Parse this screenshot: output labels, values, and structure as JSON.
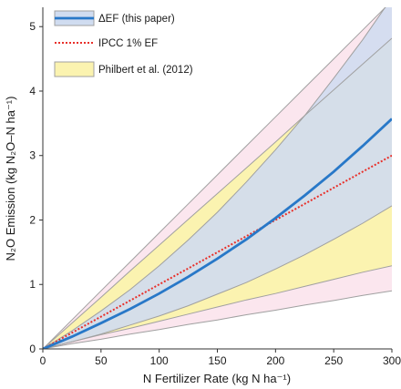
{
  "chart_data": {
    "type": "area",
    "xlabel": "N Fertilizer Rate (kg N ha⁻¹)",
    "ylabel": "N₂O Emission (kg N₂O–N ha⁻¹)",
    "xlim": [
      0,
      300
    ],
    "ylim": [
      0,
      5.3
    ],
    "x_ticks": [
      0,
      50,
      100,
      150,
      200,
      250,
      300
    ],
    "y_ticks": [
      0,
      1,
      2,
      3,
      4,
      5
    ],
    "grid": false,
    "legend_position": "top-left",
    "legend": [
      {
        "name": "ΔEF (this paper)",
        "symbol": "line-with-band",
        "color": "#2878c8",
        "band_color": "#d0dcf0"
      },
      {
        "name": "IPCC 1% EF",
        "symbol": "dotted-line",
        "color": "#e8302a"
      },
      {
        "name": "Philbert et al. (2012)",
        "symbol": "band",
        "color": "#fbf3b0"
      }
    ],
    "x": [
      0,
      25,
      50,
      75,
      100,
      125,
      150,
      175,
      200,
      225,
      250,
      275,
      300
    ],
    "series": [
      {
        "name": "ΔEF (this paper)",
        "role": "mean",
        "values": [
          0,
          0.19,
          0.4,
          0.62,
          0.86,
          1.12,
          1.4,
          1.7,
          2.03,
          2.38,
          2.75,
          3.15,
          3.57
        ],
        "color": "#2878c8"
      },
      {
        "name": "ΔEF (this paper)",
        "role": "upper",
        "values": [
          0,
          0.28,
          0.59,
          0.92,
          1.29,
          1.69,
          2.12,
          2.59,
          3.09,
          3.62,
          4.2,
          4.8,
          5.45
        ]
      },
      {
        "name": "ΔEF (this paper)",
        "role": "lower",
        "values": [
          0,
          0.11,
          0.23,
          0.37,
          0.51,
          0.67,
          0.85,
          1.03,
          1.24,
          1.46,
          1.7,
          1.95,
          2.22
        ]
      },
      {
        "name": "IPCC 1% EF",
        "role": "mean",
        "values": [
          0,
          0.25,
          0.5,
          0.75,
          1.0,
          1.25,
          1.5,
          1.75,
          2.0,
          2.25,
          2.5,
          2.75,
          3.0
        ],
        "color": "#e8302a"
      },
      {
        "name": "Philbert et al. (2012)",
        "role": "upper",
        "values": [
          0,
          0.4,
          0.8,
          1.21,
          1.61,
          2.01,
          2.41,
          2.81,
          3.21,
          3.62,
          4.02,
          4.42,
          4.82
        ]
      },
      {
        "name": "Philbert et al. (2012)",
        "role": "lower",
        "values": [
          0,
          0.11,
          0.22,
          0.32,
          0.43,
          0.54,
          0.65,
          0.76,
          0.86,
          0.97,
          1.08,
          1.19,
          1.29
        ]
      },
      {
        "name": "IPCC 1% EF",
        "role": "upper",
        "values": [
          0,
          0.45,
          0.9,
          1.35,
          1.8,
          2.25,
          2.7,
          3.15,
          3.6,
          4.05,
          4.5,
          4.95,
          5.4
        ]
      },
      {
        "name": "IPCC 1% EF",
        "role": "lower",
        "values": [
          0,
          0.08,
          0.15,
          0.23,
          0.3,
          0.38,
          0.45,
          0.53,
          0.6,
          0.68,
          0.75,
          0.83,
          0.9
        ]
      }
    ]
  }
}
